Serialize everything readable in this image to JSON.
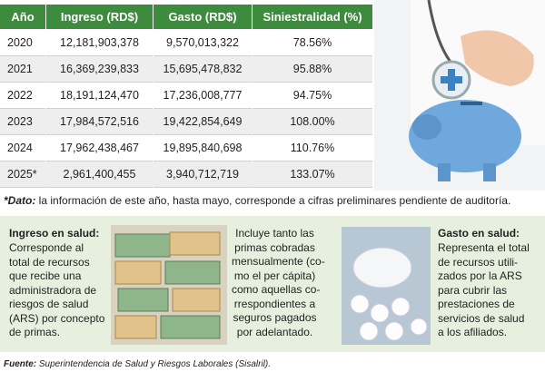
{
  "table": {
    "header": [
      "Año",
      "Ingreso (RD$)",
      "Gasto (RD$)",
      "Siniestralidad (%)"
    ],
    "rows": [
      [
        "2020",
        "12,181,903,378",
        "9,570,013,322",
        "78.56%"
      ],
      [
        "2021",
        "16,369,239,833",
        "15,695,478,832",
        "95.88%"
      ],
      [
        "2022",
        "18,191,124,470",
        "17,236,008,777",
        "94.75%"
      ],
      [
        "2023",
        "17,984,572,516",
        "19,422,854,649",
        "108.00%"
      ],
      [
        "2024",
        "17,962,438,467",
        "19,895,840,698",
        "110.76%"
      ],
      [
        "2025*",
        "2,961,400,455",
        "3,940,712,719",
        "133.07%"
      ]
    ]
  },
  "note": {
    "label": "*Dato:",
    "text": " la información de este año, hasta mayo, corresponde a cifras preliminares pendiente de auditoría."
  },
  "boxes": [
    {
      "title": "Ingreso en salud:",
      "lines": [
        "Corresponde al",
        "total de recursos",
        "que recibe una",
        "administradora de",
        "riesgos de salud",
        "(ARS) por concepto",
        "de primas."
      ]
    },
    {
      "lines": [
        "Incluye tanto las",
        "primas cobradas",
        "mensualmente (co-",
        "mo el per cápita)",
        "como aquellas co-",
        "rrespondientes a",
        "seguros pagados",
        "por adelantado."
      ]
    },
    {
      "title": "Gasto en salud:",
      "lines": [
        "Representa el total",
        "de recursos utili-",
        "zados por la ARS",
        "para cubrir las",
        "prestaciones de",
        "servicios de salud",
        "a los afiliados."
      ]
    }
  ],
  "source": {
    "label": "Fuente:",
    "text": " Superintendencia de Salud y Riesgos Laborales (Sisalril)."
  }
}
